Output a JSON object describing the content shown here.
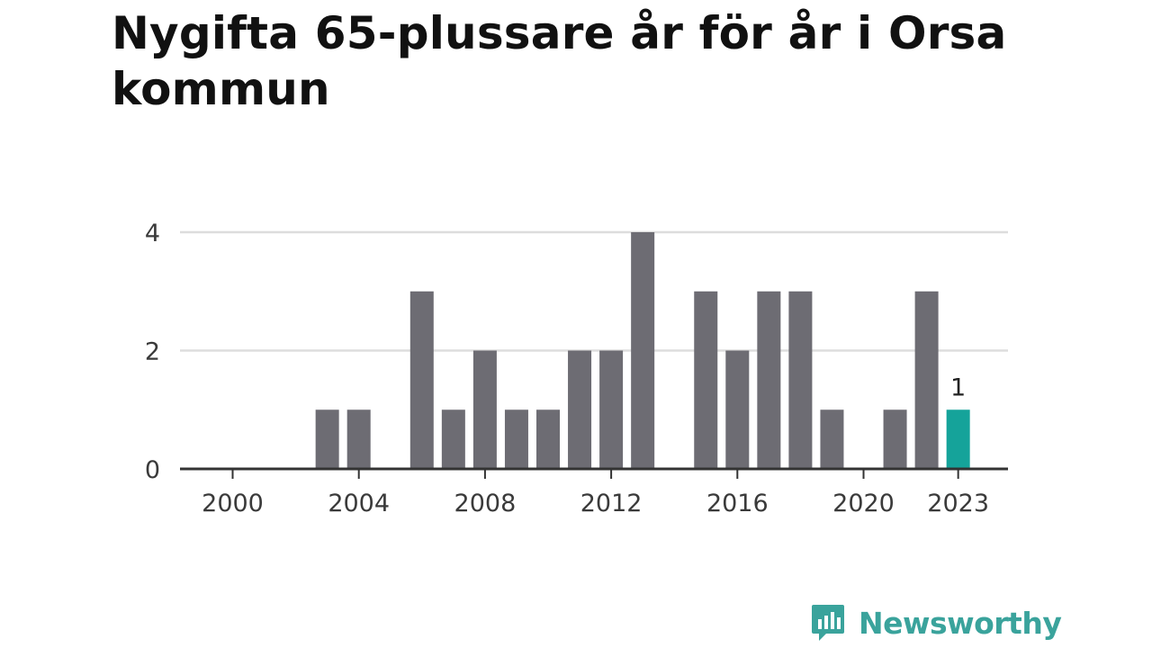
{
  "title": "Nygifta 65-plussare år för år i Orsa kommun",
  "brand": {
    "name": "Newsworthy",
    "color": "#3aa39c"
  },
  "colors": {
    "bar": "#6d6c73",
    "highlight": "#15a39a",
    "grid": "#dddddd",
    "axis": "#333333"
  },
  "chart_data": {
    "type": "bar",
    "title": "Nygifta 65-plussare år för år i Orsa kommun",
    "xlabel": "",
    "ylabel": "",
    "categories": [
      "2000",
      "2001",
      "2002",
      "2003",
      "2004",
      "2005",
      "2006",
      "2007",
      "2008",
      "2009",
      "2010",
      "2011",
      "2012",
      "2013",
      "2014",
      "2015",
      "2016",
      "2017",
      "2018",
      "2019",
      "2020",
      "2021",
      "2022",
      "2023"
    ],
    "values": [
      0,
      0,
      0,
      1,
      1,
      0,
      3,
      1,
      2,
      1,
      1,
      2,
      2,
      4,
      0,
      3,
      2,
      3,
      3,
      1,
      0,
      1,
      3,
      1
    ],
    "ylim": [
      0,
      4
    ],
    "yticks": [
      "0",
      "2",
      "4"
    ],
    "xticks": [
      "2000",
      "2004",
      "2008",
      "2012",
      "2016",
      "2020",
      "2023"
    ],
    "highlight_category": "2023",
    "data_labels": [
      {
        "category": "2023",
        "text": "1"
      }
    ],
    "grid": true,
    "legend": "none"
  }
}
